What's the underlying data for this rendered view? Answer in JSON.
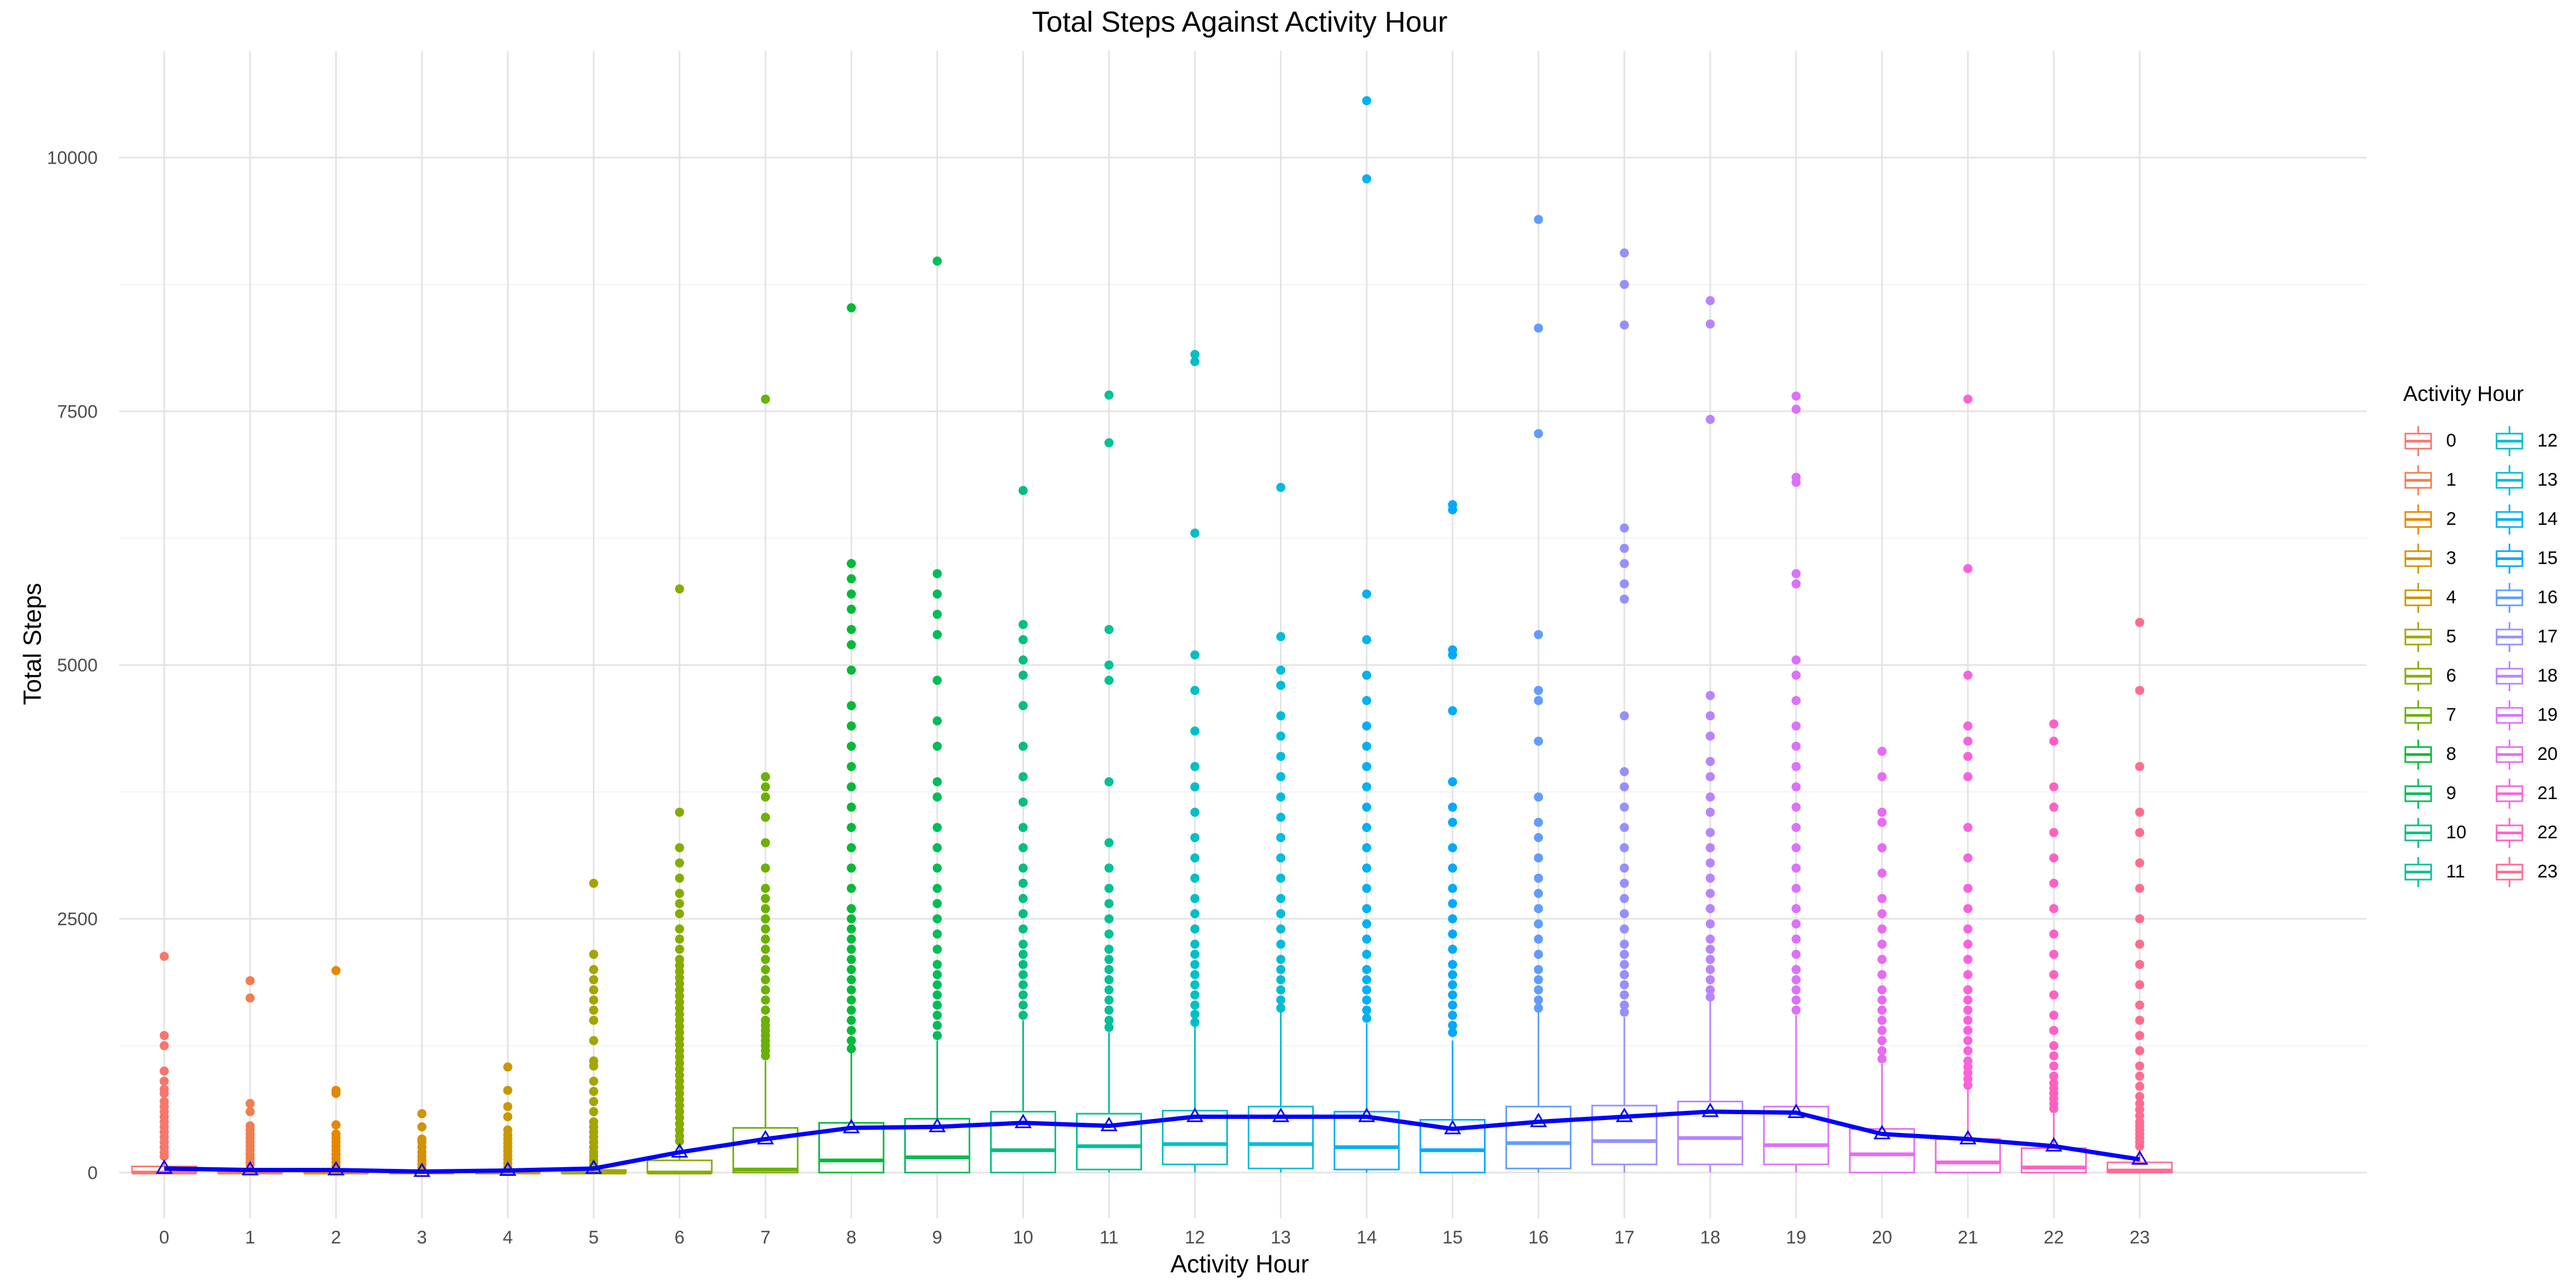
{
  "chart_data": {
    "type": "box",
    "title": "Total Steps Against Activity Hour",
    "xlabel": "Activity Hour",
    "ylabel": "Total Steps",
    "ylim": [
      -450,
      11050
    ],
    "y_ticks": [
      0,
      2500,
      5000,
      7500,
      10000
    ],
    "grid": true,
    "legend": {
      "title": "Activity Hour",
      "position": "right",
      "columns": 2
    },
    "categories": [
      "0",
      "1",
      "2",
      "3",
      "4",
      "5",
      "6",
      "7",
      "8",
      "9",
      "10",
      "11",
      "12",
      "13",
      "14",
      "15",
      "16",
      "17",
      "18",
      "19",
      "20",
      "21",
      "22",
      "23"
    ],
    "colors": [
      "#F8766D",
      "#F07E4E",
      "#E58700",
      "#D39200",
      "#C99800",
      "#A3A500",
      "#86AC00",
      "#6BB100",
      "#00BA38",
      "#00BC59",
      "#00BF7D",
      "#00C097",
      "#00BFC4",
      "#00BCD8",
      "#00B0F6",
      "#00A9FF",
      "#619CFF",
      "#9590FF",
      "#B983FF",
      "#DB72FB",
      "#E76BF3",
      "#FA62DB",
      "#FF61C3",
      "#FF6C91"
    ],
    "series": [
      {
        "name": "0",
        "q1": 0,
        "median": 0,
        "q3": 60,
        "whisker_low": 0,
        "whisker_high": 140,
        "outliers": [
          160,
          200,
          250,
          300,
          350,
          400,
          450,
          500,
          550,
          600,
          650,
          700,
          780,
          820,
          900,
          1000,
          1250,
          1350,
          2130
        ]
      },
      {
        "name": "1",
        "q1": 0,
        "median": 0,
        "q3": 30,
        "whisker_low": 0,
        "whisker_high": 60,
        "outliers": [
          80,
          100,
          140,
          180,
          220,
          260,
          300,
          340,
          380,
          420,
          460,
          600,
          680,
          1720,
          1890
        ]
      },
      {
        "name": "2",
        "q1": 0,
        "median": 0,
        "q3": 20,
        "whisker_low": 0,
        "whisker_high": 40,
        "outliers": [
          60,
          100,
          140,
          180,
          220,
          260,
          300,
          340,
          380,
          470,
          780,
          810,
          1990
        ]
      },
      {
        "name": "3",
        "q1": 0,
        "median": 0,
        "q3": 10,
        "whisker_low": 0,
        "whisker_high": 20,
        "outliers": [
          40,
          80,
          120,
          160,
          200,
          250,
          300,
          330,
          450,
          580
        ]
      },
      {
        "name": "4",
        "q1": 0,
        "median": 0,
        "q3": 15,
        "whisker_low": 0,
        "whisker_high": 30,
        "outliers": [
          50,
          90,
          130,
          170,
          210,
          250,
          290,
          330,
          370,
          420,
          550,
          650,
          810,
          1040
        ]
      },
      {
        "name": "5",
        "q1": 0,
        "median": 0,
        "q3": 25,
        "whisker_low": 0,
        "whisker_high": 60,
        "outliers": [
          80,
          120,
          160,
          200,
          250,
          300,
          350,
          400,
          450,
          500,
          600,
          700,
          800,
          900,
          1050,
          1100,
          1300,
          1500,
          1600,
          1700,
          1800,
          1900,
          2000,
          2150,
          2850
        ]
      },
      {
        "name": "6",
        "q1": 0,
        "median": 0,
        "q3": 120,
        "whisker_low": 0,
        "whisker_high": 290,
        "outliers": [
          310,
          360,
          420,
          480,
          540,
          600,
          660,
          720,
          780,
          840,
          900,
          960,
          1020,
          1080,
          1140,
          1200,
          1260,
          1320,
          1380,
          1440,
          1500,
          1560,
          1620,
          1680,
          1740,
          1800,
          1860,
          1920,
          1980,
          2040,
          2100,
          2200,
          2300,
          2400,
          2550,
          2650,
          2750,
          2900,
          3050,
          3200,
          3550,
          5750
        ]
      },
      {
        "name": "7",
        "q1": 0,
        "median": 30,
        "q3": 440,
        "whisker_low": 0,
        "whisker_high": 1100,
        "outliers": [
          1150,
          1200,
          1250,
          1300,
          1350,
          1400,
          1450,
          1500,
          1600,
          1700,
          1800,
          1900,
          2000,
          2100,
          2200,
          2300,
          2400,
          2500,
          2600,
          2700,
          2800,
          3000,
          3250,
          3500,
          3700,
          3800,
          3900,
          7620
        ]
      },
      {
        "name": "8",
        "q1": 0,
        "median": 120,
        "q3": 490,
        "whisker_low": 0,
        "whisker_high": 1190,
        "outliers": [
          1220,
          1300,
          1400,
          1500,
          1600,
          1700,
          1800,
          1900,
          2000,
          2100,
          2200,
          2300,
          2400,
          2500,
          2600,
          2800,
          3000,
          3200,
          3400,
          3600,
          3800,
          4000,
          4200,
          4400,
          4600,
          4950,
          5200,
          5350,
          5550,
          5700,
          5850,
          6000,
          8520
        ]
      },
      {
        "name": "9",
        "q1": 0,
        "median": 150,
        "q3": 530,
        "whisker_low": 0,
        "whisker_high": 1300,
        "outliers": [
          1350,
          1450,
          1550,
          1650,
          1750,
          1850,
          1950,
          2050,
          2200,
          2350,
          2500,
          2650,
          2800,
          3000,
          3200,
          3400,
          3700,
          3850,
          4200,
          4450,
          4850,
          5300,
          5500,
          5700,
          5900,
          8980
        ]
      },
      {
        "name": "10",
        "q1": 0,
        "median": 220,
        "q3": 600,
        "whisker_low": 0,
        "whisker_high": 1500,
        "outliers": [
          1550,
          1650,
          1750,
          1850,
          1950,
          2050,
          2150,
          2250,
          2400,
          2550,
          2700,
          2850,
          3000,
          3200,
          3400,
          3650,
          3900,
          4200,
          4600,
          4900,
          5050,
          5250,
          5400,
          6720
        ]
      },
      {
        "name": "11",
        "q1": 30,
        "median": 260,
        "q3": 580,
        "whisker_low": 0,
        "whisker_high": 1380,
        "outliers": [
          1430,
          1500,
          1600,
          1700,
          1800,
          1900,
          2000,
          2100,
          2200,
          2350,
          2500,
          2650,
          2800,
          3000,
          3250,
          3850,
          4850,
          5000,
          5350,
          7190,
          7660
        ]
      },
      {
        "name": "12",
        "q1": 80,
        "median": 280,
        "q3": 610,
        "whisker_low": 0,
        "whisker_high": 1440,
        "outliers": [
          1480,
          1560,
          1650,
          1750,
          1850,
          1950,
          2050,
          2150,
          2250,
          2400,
          2550,
          2700,
          2900,
          3100,
          3300,
          3550,
          3800,
          4000,
          4350,
          4750,
          5100,
          6300,
          7990,
          8060
        ]
      },
      {
        "name": "13",
        "q1": 40,
        "median": 280,
        "q3": 650,
        "whisker_low": 0,
        "whisker_high": 1580,
        "outliers": [
          1620,
          1700,
          1800,
          1900,
          2000,
          2100,
          2250,
          2400,
          2550,
          2700,
          2900,
          3100,
          3300,
          3500,
          3700,
          3900,
          4100,
          4300,
          4500,
          4800,
          4950,
          5280,
          6750
        ]
      },
      {
        "name": "14",
        "q1": 30,
        "median": 250,
        "q3": 600,
        "whisker_low": 0,
        "whisker_high": 1470,
        "outliers": [
          1520,
          1600,
          1700,
          1800,
          1900,
          2000,
          2150,
          2300,
          2450,
          2600,
          2800,
          3000,
          3200,
          3400,
          3600,
          3800,
          4000,
          4200,
          4400,
          4650,
          4900,
          5250,
          5700,
          9790,
          10560
        ]
      },
      {
        "name": "15",
        "q1": 0,
        "median": 220,
        "q3": 520,
        "whisker_low": 0,
        "whisker_high": 1300,
        "outliers": [
          1380,
          1450,
          1550,
          1650,
          1750,
          1850,
          1950,
          2050,
          2200,
          2350,
          2500,
          2650,
          2800,
          3000,
          3200,
          3450,
          3600,
          3850,
          4550,
          5100,
          5150,
          6530,
          6580
        ]
      },
      {
        "name": "16",
        "q1": 40,
        "median": 290,
        "q3": 650,
        "whisker_low": 0,
        "whisker_high": 1580,
        "outliers": [
          1620,
          1700,
          1800,
          1900,
          2000,
          2150,
          2300,
          2450,
          2600,
          2750,
          2900,
          3100,
          3300,
          3450,
          3700,
          4250,
          4650,
          4750,
          5300,
          7280,
          8320,
          9390
        ]
      },
      {
        "name": "17",
        "q1": 80,
        "median": 310,
        "q3": 660,
        "whisker_low": 0,
        "whisker_high": 1530,
        "outliers": [
          1580,
          1650,
          1750,
          1850,
          1950,
          2050,
          2150,
          2250,
          2400,
          2550,
          2700,
          2850,
          3000,
          3200,
          3400,
          3600,
          3800,
          3950,
          4500,
          5650,
          5800,
          6000,
          6150,
          6350,
          8350,
          8750,
          9060
        ]
      },
      {
        "name": "18",
        "q1": 80,
        "median": 340,
        "q3": 700,
        "whisker_low": 0,
        "whisker_high": 1690,
        "outliers": [
          1730,
          1800,
          1900,
          2000,
          2100,
          2200,
          2300,
          2450,
          2600,
          2750,
          2900,
          3050,
          3200,
          3350,
          3550,
          3700,
          3900,
          4050,
          4300,
          4500,
          4700,
          7420,
          8360,
          8590
        ]
      },
      {
        "name": "19",
        "q1": 80,
        "median": 270,
        "q3": 650,
        "whisker_low": 0,
        "whisker_high": 1550,
        "outliers": [
          1600,
          1700,
          1800,
          1900,
          2000,
          2150,
          2300,
          2450,
          2600,
          2800,
          3000,
          3200,
          3400,
          3600,
          3800,
          4000,
          4200,
          4400,
          4650,
          4900,
          5050,
          5800,
          5900,
          6800,
          6850,
          7520,
          7650
        ]
      },
      {
        "name": "20",
        "q1": 0,
        "median": 180,
        "q3": 430,
        "whisker_low": 0,
        "whisker_high": 1070,
        "outliers": [
          1120,
          1200,
          1300,
          1400,
          1500,
          1600,
          1700,
          1800,
          1950,
          2100,
          2250,
          2400,
          2550,
          2700,
          2950,
          3200,
          3450,
          3550,
          3900,
          4150
        ]
      },
      {
        "name": "21",
        "q1": 0,
        "median": 100,
        "q3": 330,
        "whisker_low": 0,
        "whisker_high": 820,
        "outliers": [
          860,
          920,
          980,
          1040,
          1100,
          1200,
          1300,
          1400,
          1500,
          1600,
          1700,
          1800,
          1950,
          2100,
          2250,
          2400,
          2600,
          2800,
          3100,
          3400,
          3900,
          4100,
          4250,
          4400,
          4900,
          5950,
          7620
        ]
      },
      {
        "name": "22",
        "q1": 0,
        "median": 50,
        "q3": 240,
        "whisker_low": 0,
        "whisker_high": 590,
        "outliers": [
          630,
          680,
          730,
          780,
          830,
          880,
          950,
          1050,
          1150,
          1250,
          1400,
          1550,
          1750,
          1950,
          2150,
          2350,
          2600,
          2850,
          3100,
          3350,
          3600,
          3800,
          4250,
          4420
        ]
      },
      {
        "name": "23",
        "q1": 0,
        "median": 20,
        "q3": 100,
        "whisker_low": 0,
        "whisker_high": 240,
        "outliers": [
          260,
          300,
          340,
          380,
          420,
          460,
          500,
          560,
          620,
          680,
          750,
          850,
          950,
          1050,
          1200,
          1350,
          1500,
          1650,
          1850,
          2050,
          2250,
          2500,
          2800,
          3050,
          3350,
          3550,
          4000,
          4750,
          5420
        ]
      }
    ],
    "mean_line": {
      "color": "#0000FF",
      "marker": "triangle-open",
      "values": [
        40,
        25,
        25,
        10,
        20,
        40,
        200,
        330,
        440,
        450,
        490,
        460,
        550,
        550,
        550,
        430,
        500,
        550,
        600,
        590,
        380,
        330,
        260,
        130
      ]
    }
  }
}
